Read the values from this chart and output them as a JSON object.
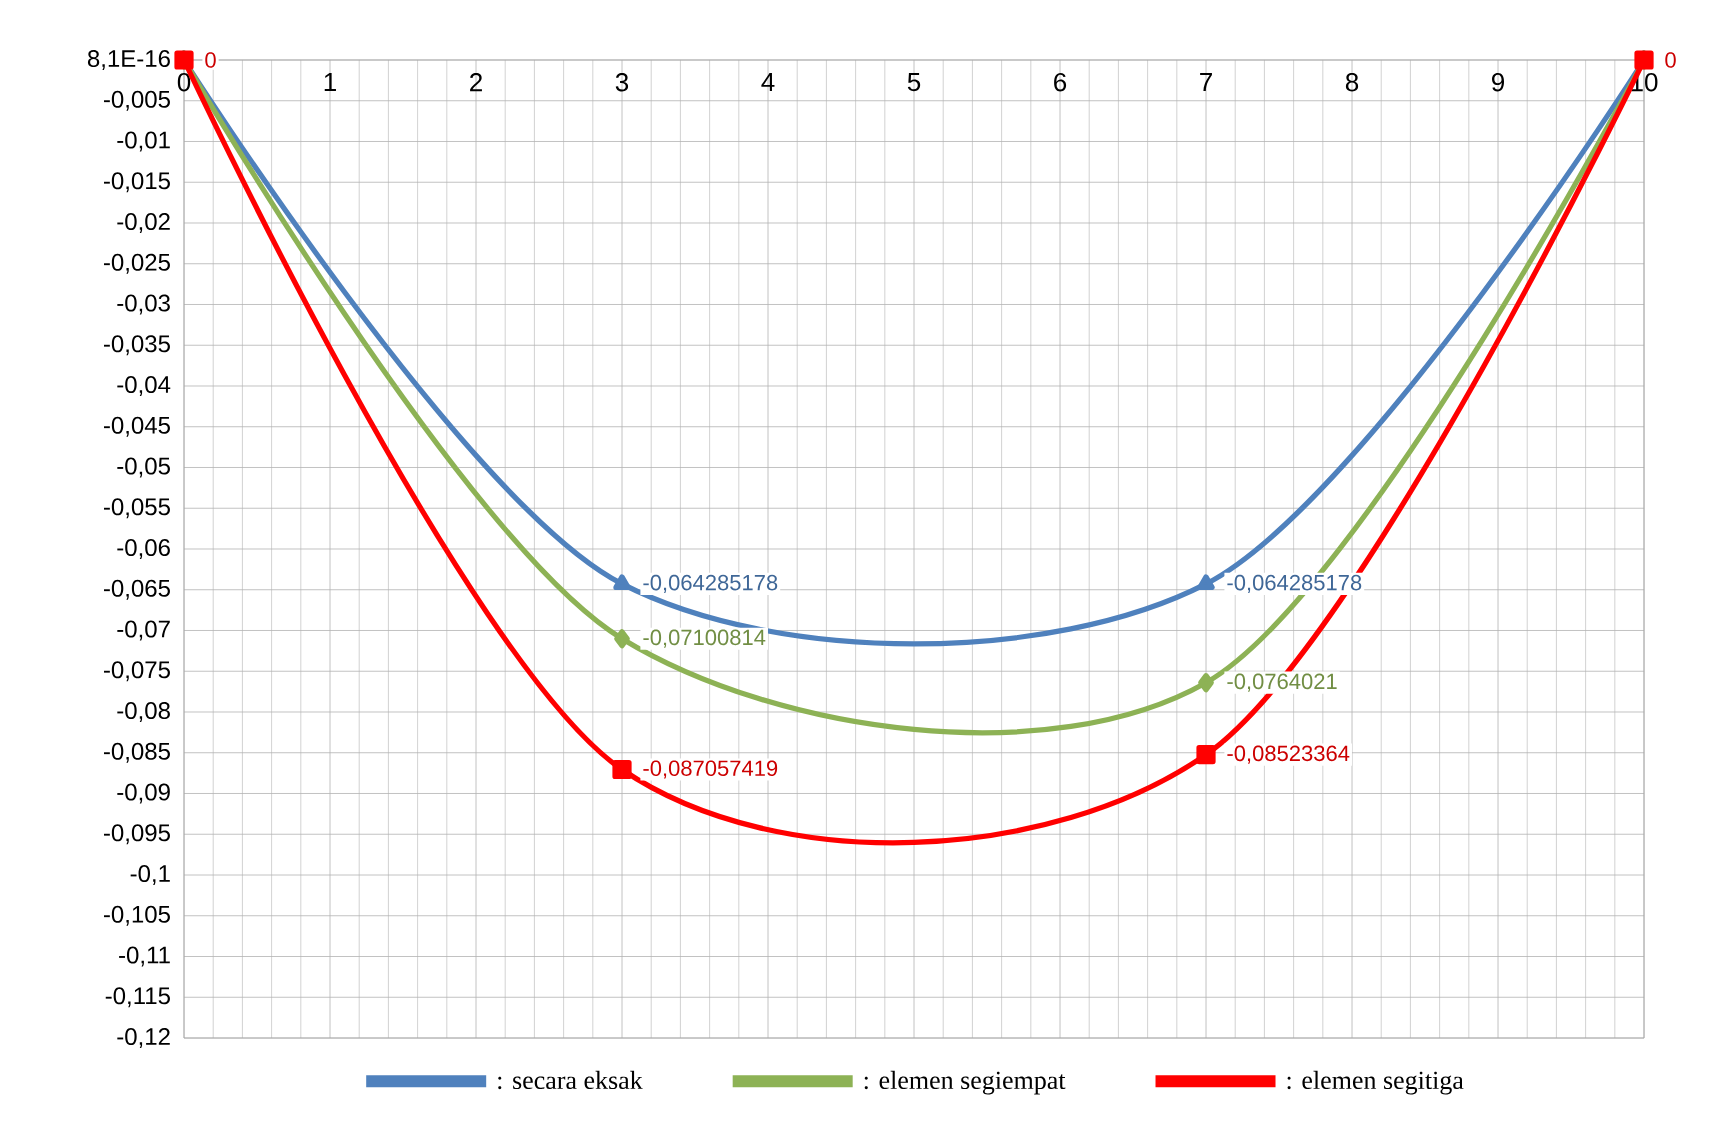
{
  "chart_data": {
    "type": "line",
    "x": [
      0,
      3,
      7,
      10
    ],
    "xlim": [
      0,
      10
    ],
    "xticks": [
      0,
      1,
      2,
      3,
      4,
      5,
      6,
      7,
      8,
      9,
      10
    ],
    "ylim": [
      -0.12,
      0
    ],
    "yticks": [
      {
        "value": 0,
        "label": "8,1E-16"
      },
      {
        "value": -0.005,
        "label": "-0,005"
      },
      {
        "value": -0.01,
        "label": "-0,01"
      },
      {
        "value": -0.015,
        "label": "-0,015"
      },
      {
        "value": -0.02,
        "label": "-0,02"
      },
      {
        "value": -0.025,
        "label": "-0,025"
      },
      {
        "value": -0.03,
        "label": "-0,03"
      },
      {
        "value": -0.035,
        "label": "-0,035"
      },
      {
        "value": -0.04,
        "label": "-0,04"
      },
      {
        "value": -0.045,
        "label": "-0,045"
      },
      {
        "value": -0.05,
        "label": "-0,05"
      },
      {
        "value": -0.055,
        "label": "-0,055"
      },
      {
        "value": -0.06,
        "label": "-0,06"
      },
      {
        "value": -0.065,
        "label": "-0,065"
      },
      {
        "value": -0.07,
        "label": "-0,07"
      },
      {
        "value": -0.075,
        "label": "-0,075"
      },
      {
        "value": -0.08,
        "label": "-0,08"
      },
      {
        "value": -0.085,
        "label": "-0,085"
      },
      {
        "value": -0.09,
        "label": "-0,09"
      },
      {
        "value": -0.095,
        "label": "-0,095"
      },
      {
        "value": -0.1,
        "label": "-0,1"
      },
      {
        "value": -0.105,
        "label": "-0,105"
      },
      {
        "value": -0.11,
        "label": "-0,11"
      },
      {
        "value": -0.115,
        "label": "-0,115"
      },
      {
        "value": -0.12,
        "label": "-0,12"
      }
    ],
    "grid": true,
    "legend": "bottom",
    "line_style": "solid",
    "series": [
      {
        "name": ": secara eksak",
        "color": "#4f81bd",
        "marker": "triangle",
        "values": [
          0,
          -0.064285178,
          -0.064285178,
          0
        ],
        "value_labels": [
          null,
          "-0,064285178",
          "-0,064285178",
          null
        ]
      },
      {
        "name": ": elemen segiempat",
        "color": "#8db255",
        "marker": "diamond",
        "values": [
          0,
          -0.07100814,
          -0.0764021,
          0
        ],
        "value_labels": [
          null,
          "-0,07100814",
          "-0,0764021",
          null
        ]
      },
      {
        "name": ": elemen segitiga",
        "color": "#ff0000",
        "marker": "square",
        "values": [
          0,
          -0.087057419,
          -0.08523364,
          0
        ],
        "value_labels": [
          "0",
          "-0,087057419",
          "-0,08523364",
          "0"
        ]
      }
    ]
  }
}
